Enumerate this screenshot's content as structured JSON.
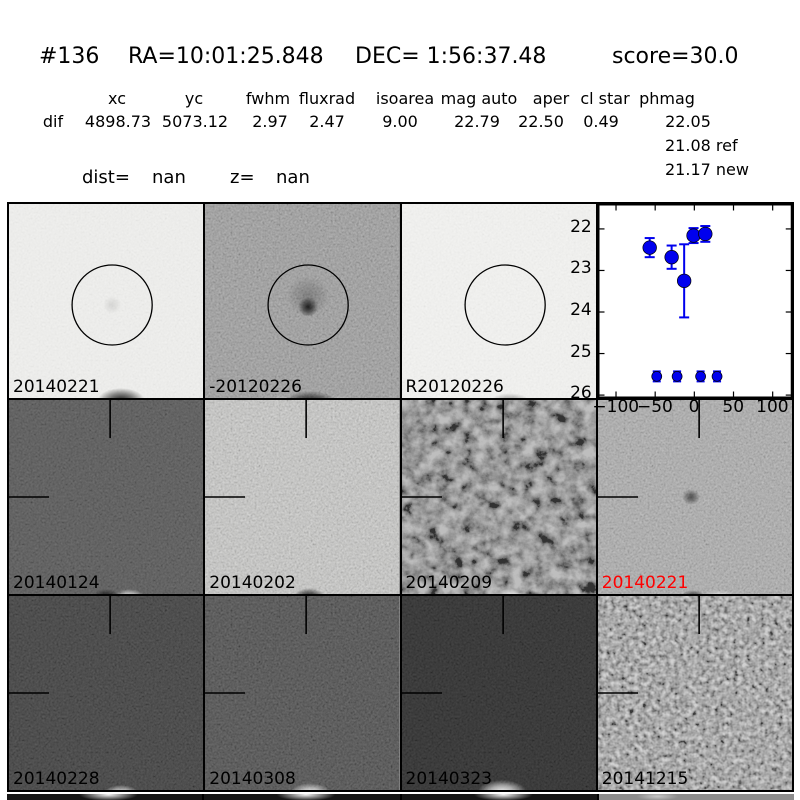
{
  "header": {
    "candidate_id": "#136",
    "ra": "RA=10:01:25.848",
    "dec": "DEC= 1:56:37.48",
    "score": "score=30.0"
  },
  "table": {
    "row_label": "dif",
    "columns": [
      "xc",
      "yc",
      "fwhm",
      "fluxrad",
      "isoarea",
      "mag auto",
      "aper",
      "cl star",
      "phmag"
    ],
    "values": [
      "4898.73",
      "5073.12",
      "2.97",
      "2.47",
      "9.00",
      "22.79",
      "22.50",
      "0.49",
      "22.05"
    ],
    "extra_mags": [
      "21.08 ref",
      "21.17 new"
    ],
    "dist_label": "dist=",
    "dist_value": "nan",
    "z_label": "z=",
    "z_value": "nan"
  },
  "panels": [
    {
      "label": "20140221",
      "label_color": "#000000",
      "marker": "circle",
      "shade": "#f1f1ef",
      "noise": "fine",
      "noise_opacity": 0.08
    },
    {
      "label": "-20120226",
      "label_color": "#000000",
      "marker": "circle",
      "shade": "#999999",
      "noise": "fine",
      "noise_opacity": 0.3
    },
    {
      "label": "R20120226",
      "label_color": "#000000",
      "marker": "circle",
      "shade": "#f4f4f2",
      "noise": "fine",
      "noise_opacity": 0.08
    },
    {
      "label": "",
      "label_color": "#000000",
      "type": "plot"
    },
    {
      "label": "20140124",
      "label_color": "#000000",
      "marker": "crosshair",
      "shade": "#4b4b4b",
      "noise": "fine",
      "noise_opacity": 0.22
    },
    {
      "label": "20140202",
      "label_color": "#000000",
      "marker": "crosshair",
      "shade": "#c9c9c7",
      "noise": "fine",
      "noise_opacity": 0.3
    },
    {
      "label": "20140209",
      "label_color": "#000000",
      "marker": "crosshair",
      "shade": "#707070",
      "noise": "blotch",
      "noise_opacity": 0.55
    },
    {
      "label": "20140221",
      "label_color": "#ff0000",
      "marker": "crosshair",
      "shade": "#a9a9a9",
      "noise": "fine",
      "noise_opacity": 0.3
    },
    {
      "label": "20140228",
      "label_color": "#000000",
      "marker": "crosshair",
      "shade": "#303030",
      "noise": "fine",
      "noise_opacity": 0.22
    },
    {
      "label": "20140308",
      "label_color": "#000000",
      "marker": "crosshair",
      "shade": "#3b3b3b",
      "noise": "fine",
      "noise_opacity": 0.28
    },
    {
      "label": "20140323",
      "label_color": "#000000",
      "marker": "crosshair",
      "shade": "#202020",
      "noise": "fine",
      "noise_opacity": 0.18
    },
    {
      "label": "20141215",
      "label_color": "#000000",
      "marker": "crosshair",
      "shade": "#8e8e8e",
      "noise": "speck",
      "noise_opacity": 0.6
    }
  ],
  "chart_data": {
    "type": "scatter",
    "title": "",
    "xlabel": "",
    "ylabel": "",
    "xlim": [
      -123,
      125
    ],
    "ylim_top": 21.4,
    "ylim_bottom": 26.07,
    "y_inverted": true,
    "grid": false,
    "x_ticks": [
      -100,
      -50,
      0,
      50,
      100
    ],
    "y_ticks": [
      22,
      23,
      24,
      25,
      26
    ],
    "marker_color": "#0000ee",
    "series": [
      {
        "name": "detections",
        "x": [
          -57,
          -29,
          -13,
          -1,
          14
        ],
        "y": [
          22.45,
          22.68,
          23.25,
          22.16,
          22.12
        ],
        "yerr": [
          0.23,
          0.28,
          0.88,
          0.18,
          0.19
        ],
        "marker_size": "large"
      },
      {
        "name": "limits",
        "x": [
          -48,
          -22,
          8,
          29
        ],
        "y": [
          25.55,
          25.55,
          25.55,
          25.55
        ],
        "yerr": [
          0.12,
          0.12,
          0.12,
          0.12
        ],
        "marker_size": "small"
      }
    ]
  }
}
